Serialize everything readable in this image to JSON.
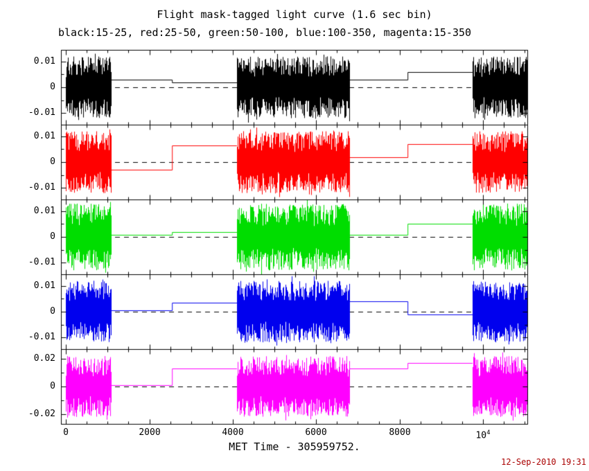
{
  "figure": {
    "title": "Flight mask-tagged light curve (1.6 sec bin)",
    "subtitle": "black:15-25, red:25-50, green:50-100, blue:100-350, magenta:15-350",
    "xlabel": "MET Time - 305959752.",
    "timestamp": "12-Sep-2010 19:31",
    "timestamp_color": "#aa0000",
    "background": "#ffffff",
    "frame_color": "#000000",
    "zero_line_style": "dashed-black"
  },
  "chart_data": {
    "type": "line",
    "title": "Flight mask-tagged light curve (1.6 sec bin)",
    "subtitle": "black:15-25, red:25-50, green:50-100, blue:100-350, magenta:15-350",
    "xlabel": "MET Time - 305959752.",
    "xlim": [
      -120,
      11080
    ],
    "x_minor_step": 500,
    "xticks": [
      {
        "v": 0,
        "label": "0"
      },
      {
        "v": 2000,
        "label": "2000"
      },
      {
        "v": 4000,
        "label": "4000"
      },
      {
        "v": 6000,
        "label": "6000"
      },
      {
        "v": 8000,
        "label": "8000"
      },
      {
        "v": 10000,
        "label": "10",
        "sup": "4"
      }
    ],
    "grid": false,
    "legend": "in subtitle",
    "panels": [
      {
        "name": "black-15-25-keV",
        "band": "15-25",
        "color": "#000000",
        "ylim": [
          -0.0145,
          0.0145
        ],
        "yticks": [
          {
            "v": -0.01,
            "label": "-0.01"
          },
          {
            "v": 0,
            "label": "0"
          },
          {
            "v": 0.01,
            "label": "0.01"
          }
        ],
        "y_minor_step": 0.005,
        "noise_bursts": [
          {
            "x": [
              0,
              1080
            ],
            "mean": 0,
            "amp": 0.012
          },
          {
            "x": [
              4100,
              6800
            ],
            "mean": 0,
            "amp": 0.012
          },
          {
            "x": [
              9750,
              11080
            ],
            "mean": 0,
            "amp": 0.012
          }
        ],
        "steps": [
          {
            "x": [
              1080,
              2550
            ],
            "level": 0.003
          },
          {
            "x": [
              2550,
              4100
            ],
            "level": 0.002
          },
          {
            "x": [
              6800,
              8200
            ],
            "level": 0.003
          },
          {
            "x": [
              8200,
              9750
            ],
            "level": 0.006
          }
        ]
      },
      {
        "name": "red-25-50-keV",
        "band": "25-50",
        "color": "#ff0000",
        "ylim": [
          -0.0145,
          0.0145
        ],
        "yticks": [
          {
            "v": -0.01,
            "label": "-0.01"
          },
          {
            "v": 0,
            "label": "0"
          },
          {
            "v": 0.01,
            "label": "0.01"
          }
        ],
        "y_minor_step": 0.005,
        "noise_bursts": [
          {
            "x": [
              0,
              1080
            ],
            "mean": 0,
            "amp": 0.012
          },
          {
            "x": [
              4100,
              6800
            ],
            "mean": 0,
            "amp": 0.012
          },
          {
            "x": [
              9750,
              11080
            ],
            "mean": 0,
            "amp": 0.012
          }
        ],
        "steps": [
          {
            "x": [
              1080,
              2550
            ],
            "level": -0.003
          },
          {
            "x": [
              2550,
              4100
            ],
            "level": 0.0065
          },
          {
            "x": [
              6800,
              8200
            ],
            "level": 0.002
          },
          {
            "x": [
              8200,
              9750
            ],
            "level": 0.007
          }
        ]
      },
      {
        "name": "green-50-100-keV",
        "band": "50-100",
        "color": "#00dd00",
        "ylim": [
          -0.0145,
          0.0145
        ],
        "yticks": [
          {
            "v": -0.01,
            "label": "-0.01"
          },
          {
            "v": 0,
            "label": "0"
          },
          {
            "v": 0.01,
            "label": "0.01"
          }
        ],
        "y_minor_step": 0.005,
        "noise_bursts": [
          {
            "x": [
              0,
              1080
            ],
            "mean": 0,
            "amp": 0.013
          },
          {
            "x": [
              4100,
              6800
            ],
            "mean": 0,
            "amp": 0.013
          },
          {
            "x": [
              9750,
              11080
            ],
            "mean": 0,
            "amp": 0.013
          }
        ],
        "steps": [
          {
            "x": [
              1080,
              2550
            ],
            "level": 0.0008
          },
          {
            "x": [
              2550,
              4100
            ],
            "level": 0.002
          },
          {
            "x": [
              6800,
              8200
            ],
            "level": 0.0008
          },
          {
            "x": [
              8200,
              9750
            ],
            "level": 0.005
          }
        ]
      },
      {
        "name": "blue-100-350-keV",
        "band": "100-350",
        "color": "#0000ee",
        "ylim": [
          -0.0145,
          0.0145
        ],
        "yticks": [
          {
            "v": -0.01,
            "label": "-0.01"
          },
          {
            "v": 0,
            "label": "0"
          },
          {
            "v": 0.01,
            "label": "0.01"
          }
        ],
        "y_minor_step": 0.005,
        "noise_bursts": [
          {
            "x": [
              0,
              1080
            ],
            "mean": 0,
            "amp": 0.012
          },
          {
            "x": [
              4100,
              6800
            ],
            "mean": 0,
            "amp": 0.012
          },
          {
            "x": [
              9750,
              11080
            ],
            "mean": 0,
            "amp": 0.012
          }
        ],
        "steps": [
          {
            "x": [
              1080,
              2550
            ],
            "level": 0.0005
          },
          {
            "x": [
              2550,
              4100
            ],
            "level": 0.0035
          },
          {
            "x": [
              6800,
              8200
            ],
            "level": 0.004
          },
          {
            "x": [
              8200,
              9750
            ],
            "level": -0.001
          }
        ]
      },
      {
        "name": "magenta-15-350-keV",
        "band": "15-350",
        "color": "#ff00ff",
        "ylim": [
          -0.027,
          0.027
        ],
        "yticks": [
          {
            "v": -0.02,
            "label": "-0.02"
          },
          {
            "v": 0,
            "label": "0"
          },
          {
            "v": 0.02,
            "label": "0.02"
          }
        ],
        "y_minor_step": 0.01,
        "noise_bursts": [
          {
            "x": [
              0,
              1080
            ],
            "mean": 0,
            "amp": 0.022
          },
          {
            "x": [
              4100,
              6800
            ],
            "mean": 0,
            "amp": 0.022
          },
          {
            "x": [
              9750,
              11080
            ],
            "mean": 0,
            "amp": 0.022
          }
        ],
        "steps": [
          {
            "x": [
              1080,
              2550
            ],
            "level": 0.001
          },
          {
            "x": [
              2550,
              4100
            ],
            "level": 0.013
          },
          {
            "x": [
              6800,
              8200
            ],
            "level": 0.013
          },
          {
            "x": [
              8200,
              9750
            ],
            "level": 0.017
          }
        ]
      }
    ]
  }
}
